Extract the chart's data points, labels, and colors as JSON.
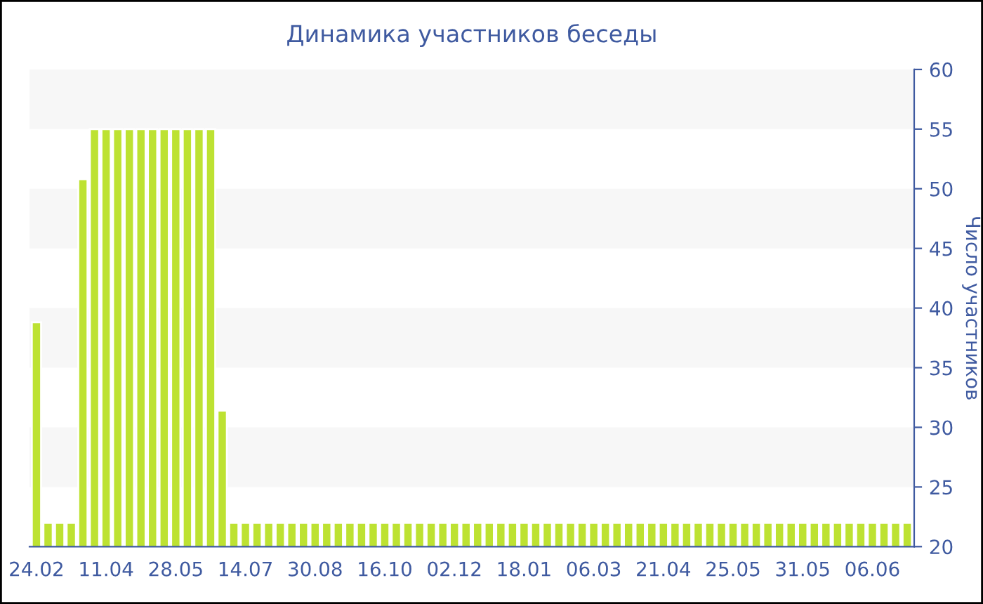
{
  "chart_data": {
    "type": "bar",
    "title": "Динамика участников беседы",
    "ylabel": "Число участников",
    "categories": [
      "24.02",
      null,
      null,
      null,
      null,
      null,
      "11.04",
      null,
      null,
      null,
      null,
      null,
      "28.05",
      null,
      null,
      null,
      null,
      null,
      "14.07",
      null,
      null,
      null,
      null,
      null,
      "30.08",
      null,
      null,
      null,
      null,
      null,
      "16.10",
      null,
      null,
      null,
      null,
      null,
      "02.12",
      null,
      null,
      null,
      null,
      null,
      "18.01",
      null,
      null,
      null,
      null,
      null,
      "06.03",
      null,
      null,
      null,
      null,
      null,
      "21.04",
      null,
      null,
      null,
      null,
      null,
      "25.05",
      null,
      null,
      null,
      null,
      null,
      "31.05",
      null,
      null,
      null,
      null,
      null,
      "06.06",
      null,
      null,
      null
    ],
    "values": [
      38.8,
      22,
      22,
      22,
      50.8,
      55,
      55,
      55,
      55,
      55,
      55,
      55,
      55,
      55,
      55,
      55,
      31.4,
      22,
      22,
      22,
      22,
      22,
      22,
      22,
      22,
      22,
      22,
      22,
      22,
      22,
      22,
      22,
      22,
      22,
      22,
      22,
      22,
      22,
      22,
      22,
      22,
      22,
      22,
      22,
      22,
      22,
      22,
      22,
      22,
      22,
      22,
      22,
      22,
      22,
      22,
      22,
      22,
      22,
      22,
      22,
      22,
      22,
      22,
      22,
      22,
      22,
      22,
      22,
      22,
      22,
      22,
      22,
      22,
      22,
      22,
      22
    ],
    "color": "#bde232",
    "ylim": [
      20,
      60
    ],
    "yticks": [
      20,
      25,
      30,
      35,
      40,
      45,
      50,
      55,
      60
    ],
    "bands": [
      {
        "axis": "y",
        "from": 25,
        "to": 30,
        "color": "#f7f7f7"
      },
      {
        "axis": "y",
        "from": 35,
        "to": 40,
        "color": "#f7f7f7"
      },
      {
        "axis": "y",
        "from": 45,
        "to": 50,
        "color": "#f7f7f7"
      },
      {
        "axis": "y",
        "from": 55,
        "to": 60,
        "color": "#f7f7f7"
      }
    ],
    "grid": false
  }
}
